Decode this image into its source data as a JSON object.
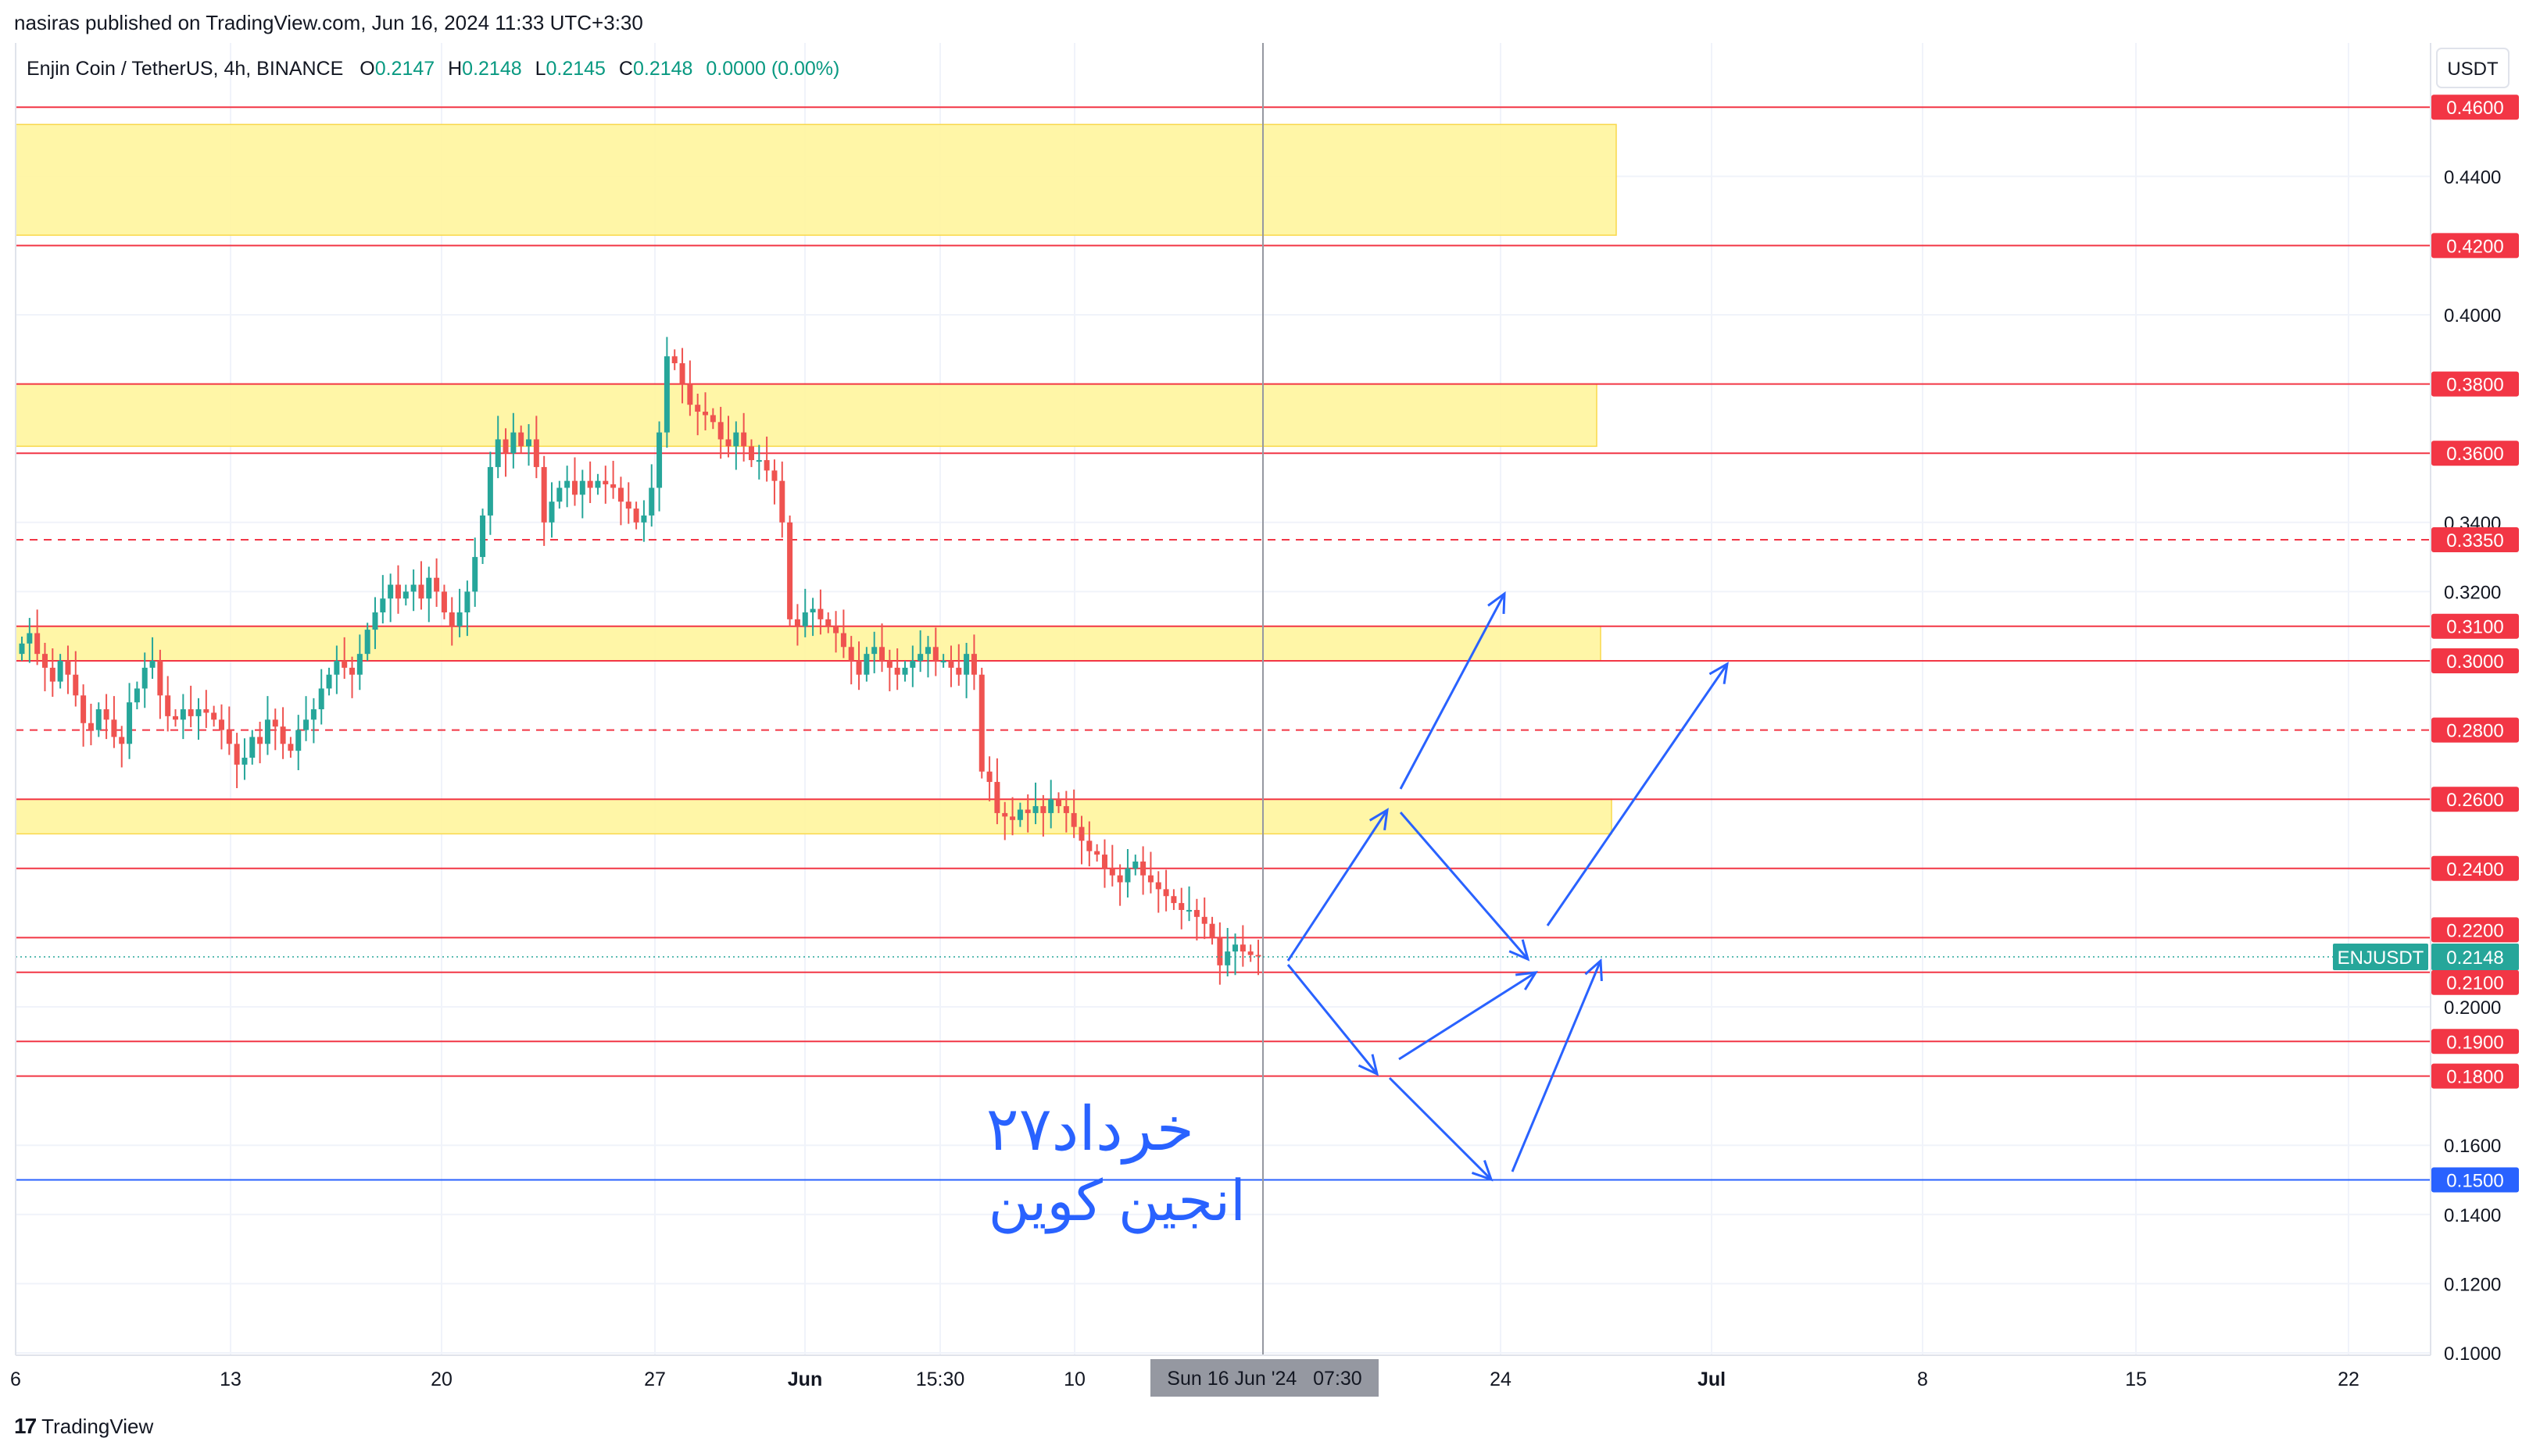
{
  "header": {
    "published": "nasiras published on TradingView.com, Jun 16, 2024 11:33 UTC+3:30",
    "symbol": "Enjin Coin / TetherUS, 4h, BINANCE",
    "o_label": "O",
    "o_value": "0.2147",
    "h_label": "H",
    "h_value": "0.2148",
    "l_label": "L",
    "l_value": "0.2145",
    "c_label": "C",
    "c_value": "0.2148",
    "change": "0.0000 (0.00%)"
  },
  "currency_button": "USDT",
  "footer": {
    "brand": "TradingView",
    "logo": "17"
  },
  "colors": {
    "up": "#26a69a",
    "down": "#ef5350",
    "level": "#f23645",
    "zone": "#fff59d",
    "support": "#2962ff",
    "arrow": "#2962ff",
    "grid": "#f0f3fa",
    "annotation": "#2962ff"
  },
  "chart_data": {
    "type": "candlestick",
    "symbol": "ENJUSDT",
    "interval": "4h",
    "exchange": "BINANCE",
    "ylim": [
      0.1,
      0.47
    ],
    "y_ticks": [
      "0.1000",
      "0.1200",
      "0.1400",
      "0.1600",
      "0.2000",
      "0.3200",
      "0.3400",
      "0.4000",
      "0.4400"
    ],
    "x_ticks": [
      "6",
      "13",
      "20",
      "27",
      "Jun",
      "15:30",
      "10",
      "24",
      "Jul",
      "8",
      "15",
      "22"
    ],
    "crosshair_label": "Sun 16 Jun '24   07:30",
    "last_price": {
      "symbol": "ENJUSDT",
      "value": "0.2148",
      "price": 0.2148
    },
    "levels": [
      {
        "price": 0.46,
        "label": "0.4600",
        "style": "solid",
        "color": "#f23645"
      },
      {
        "price": 0.42,
        "label": "0.4200",
        "style": "solid",
        "color": "#f23645"
      },
      {
        "price": 0.38,
        "label": "0.3800",
        "style": "solid",
        "color": "#f23645"
      },
      {
        "price": 0.36,
        "label": "0.3600",
        "style": "solid",
        "color": "#f23645"
      },
      {
        "price": 0.335,
        "label": "0.3350",
        "style": "dashed",
        "color": "#f23645"
      },
      {
        "price": 0.31,
        "label": "0.3100",
        "style": "solid",
        "color": "#f23645"
      },
      {
        "price": 0.3,
        "label": "0.3000",
        "style": "solid",
        "color": "#f23645"
      },
      {
        "price": 0.28,
        "label": "0.2800",
        "style": "dashed",
        "color": "#f23645"
      },
      {
        "price": 0.26,
        "label": "0.2600",
        "style": "solid",
        "color": "#f23645"
      },
      {
        "price": 0.24,
        "label": "0.2400",
        "style": "solid",
        "color": "#f23645"
      },
      {
        "price": 0.22,
        "label": "0.2200",
        "style": "solid",
        "color": "#f23645"
      },
      {
        "price": 0.21,
        "label": "0.2100",
        "style": "solid",
        "color": "#f23645"
      },
      {
        "price": 0.19,
        "label": "0.1900",
        "style": "solid",
        "color": "#f23645"
      },
      {
        "price": 0.18,
        "label": "0.1800",
        "style": "solid",
        "color": "#f23645"
      },
      {
        "price": 0.15,
        "label": "0.1500",
        "style": "solid",
        "color": "#2962ff"
      }
    ],
    "zones": [
      {
        "low": 0.423,
        "high": 0.455
      },
      {
        "low": 0.362,
        "high": 0.38
      },
      {
        "low": 0.3,
        "high": 0.31
      },
      {
        "low": 0.25,
        "high": 0.26
      }
    ],
    "candles_close": [
      0.305,
      0.308,
      0.302,
      0.298,
      0.294,
      0.3,
      0.296,
      0.29,
      0.282,
      0.28,
      0.286,
      0.283,
      0.278,
      0.276,
      0.288,
      0.292,
      0.298,
      0.3,
      0.29,
      0.284,
      0.283,
      0.286,
      0.284,
      0.286,
      0.285,
      0.283,
      0.28,
      0.276,
      0.27,
      0.272,
      0.278,
      0.276,
      0.283,
      0.281,
      0.276,
      0.274,
      0.28,
      0.283,
      0.286,
      0.292,
      0.296,
      0.3,
      0.298,
      0.296,
      0.302,
      0.309,
      0.314,
      0.318,
      0.322,
      0.318,
      0.32,
      0.322,
      0.318,
      0.324,
      0.32,
      0.314,
      0.31,
      0.314,
      0.32,
      0.33,
      0.342,
      0.356,
      0.364,
      0.36,
      0.366,
      0.362,
      0.364,
      0.356,
      0.34,
      0.346,
      0.35,
      0.352,
      0.348,
      0.352,
      0.35,
      0.352,
      0.351,
      0.35,
      0.346,
      0.344,
      0.34,
      0.342,
      0.35,
      0.366,
      0.388,
      0.386,
      0.38,
      0.374,
      0.372,
      0.371,
      0.369,
      0.364,
      0.362,
      0.366,
      0.362,
      0.358,
      0.358,
      0.355,
      0.352,
      0.34,
      0.312,
      0.31,
      0.314,
      0.315,
      0.312,
      0.31,
      0.308,
      0.304,
      0.3,
      0.296,
      0.302,
      0.304,
      0.3,
      0.298,
      0.296,
      0.298,
      0.3,
      0.302,
      0.304,
      0.3,
      0.3,
      0.298,
      0.296,
      0.302,
      0.296,
      0.268,
      0.265,
      0.256,
      0.255,
      0.254,
      0.257,
      0.256,
      0.258,
      0.256,
      0.26,
      0.258,
      0.256,
      0.252,
      0.248,
      0.245,
      0.244,
      0.24,
      0.238,
      0.236,
      0.24,
      0.242,
      0.238,
      0.236,
      0.234,
      0.232,
      0.23,
      0.228,
      0.228,
      0.226,
      0.224,
      0.22,
      0.212,
      0.216,
      0.218,
      0.216,
      0.215,
      0.2148
    ]
  },
  "annotation": {
    "line1": "خرداد۲۷",
    "line2": "انجین کوین"
  }
}
